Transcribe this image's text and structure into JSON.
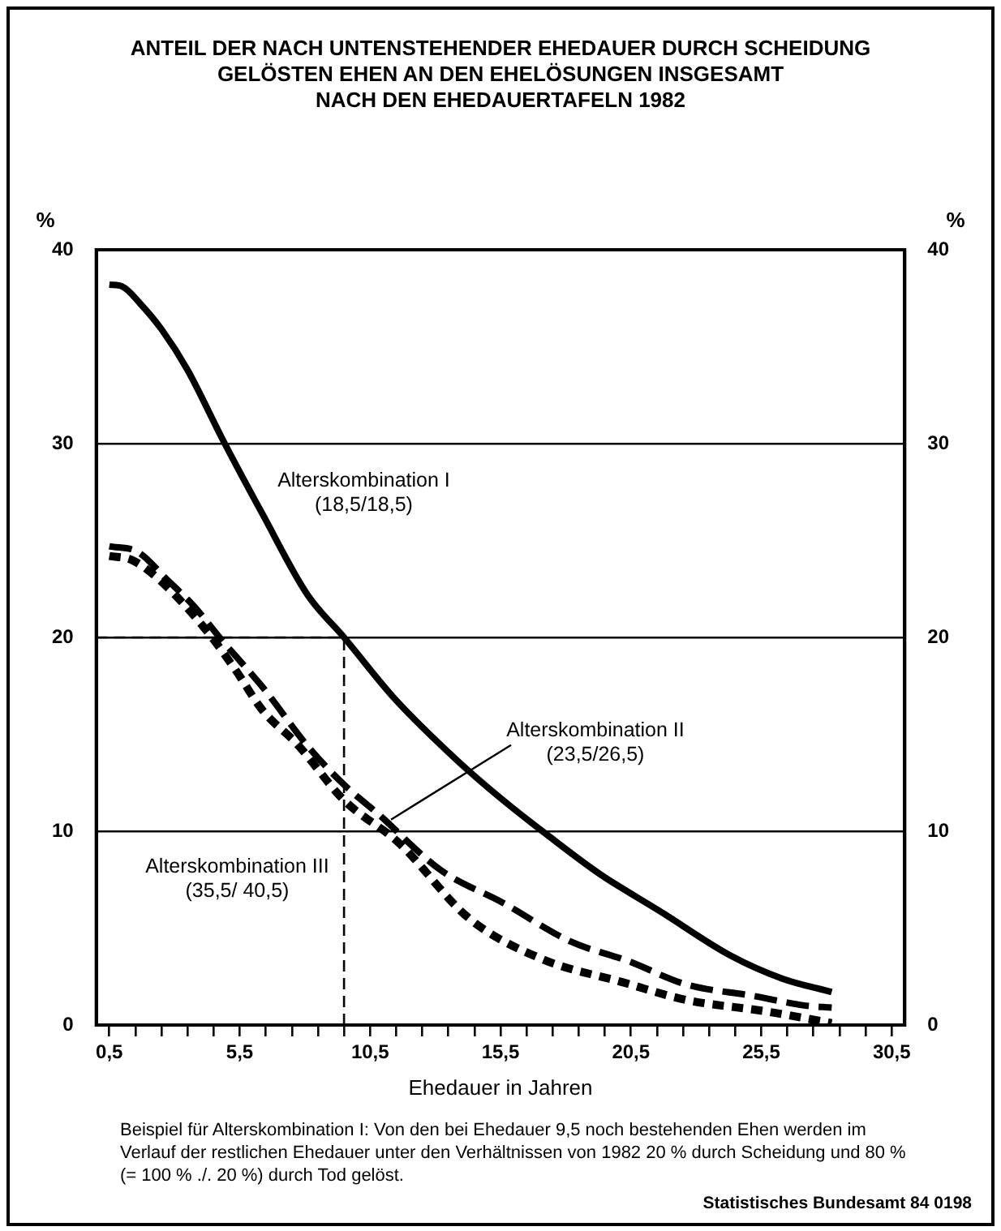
{
  "chart_data": {
    "type": "line",
    "title": "ANTEIL DER NACH UNTENSTEHENDER EHEDAUER DURCH SCHEIDUNG\nGELÖSTEN  EHEN AN DEN EHELÖSUNGEN INSGESAMT\nNACH DEN EHEDAUERTAFELN 1982",
    "xlabel": "Ehedauer in Jahren",
    "ylabel": "%",
    "y2label": "%",
    "series": [
      {
        "name": "Alterskombination I\n(18,5/18,5)",
        "color": "#000000",
        "line_style": "solid",
        "x": [
          0.5,
          1.0,
          1.7,
          2.5,
          3.5,
          4.85,
          6.4,
          8.1,
          9.5,
          11.4,
          13.8,
          15.6,
          17.3,
          19.3,
          21.7,
          24.3,
          26.3,
          28.2
        ],
        "values": [
          38.2,
          38.1,
          37.2,
          35.9,
          33.8,
          30.2,
          26.3,
          22.2,
          20,
          16.9,
          13.7,
          11.6,
          9.8,
          7.8,
          5.8,
          3.6,
          2.4,
          1.7
        ]
      },
      {
        "color": "#000000",
        "line_style": "dashed",
        "x": [
          0.5,
          1.6,
          2.7,
          3.75,
          4.85,
          6.4,
          8.1,
          9.5,
          10.8,
          13.2,
          15.6,
          18.2,
          20.4,
          22.6,
          25.2,
          27.2,
          28.2
        ],
        "values": [
          24.7,
          24.4,
          23.0,
          21.6,
          19.8,
          17.4,
          14.4,
          12.4,
          10.9,
          8.0,
          6.3,
          4.3,
          3.3,
          2.1,
          1.5,
          1.0,
          0.9
        ]
      },
      {
        "name": "Alterskombination III\n(35,5/ 40,5)",
        "color": "#000000",
        "line_style": "dotted",
        "x": [
          0.5,
          1.35,
          2.4,
          4.2,
          5.3,
          6.4,
          7.7,
          9.5,
          11.6,
          14.3,
          17.1,
          20.2,
          22.6,
          25.7,
          28.2
        ],
        "values": [
          24.2,
          24.0,
          23.0,
          20.4,
          18.4,
          16.2,
          14.5,
          11.6,
          9.4,
          5.5,
          3.4,
          2.2,
          1.3,
          0.7,
          0.1
        ]
      }
    ],
    "annotations": [
      {
        "text": "Alterskombination II\n(23,5/26,5)",
        "x": 11.3,
        "y": 10.6
      },
      "Beispiel für Alterskombination I: Von den bei Ehedauer 9,5 noch bestehenden Ehen werden im Verlauf der restlichen Ehedauer unter den Verhältnissen von 1982 20 % durch Scheidung und 80 % (= 100 % ./. 20 %) durch Tod gelöst.",
      "Statistisches Bundesamt 84 0198"
    ],
    "ref_lines": [
      {
        "axis": "y",
        "value": 20,
        "line_style": "dashed"
      },
      {
        "axis": "x",
        "value": 9.5,
        "line_style": "dashed"
      }
    ],
    "xlim": [
      0,
      31
    ],
    "xticks": [
      {
        "value": 0.5,
        "label": "0,5"
      },
      {
        "value": 1.5,
        "label": null
      },
      {
        "value": 2.5,
        "label": null
      },
      {
        "value": 3.5,
        "label": null
      },
      {
        "value": 4.5,
        "label": null
      },
      {
        "value": 5.5,
        "label": "5,5"
      },
      {
        "value": 6.5,
        "label": null
      },
      {
        "value": 7.5,
        "label": null
      },
      {
        "value": 8.5,
        "label": null
      },
      {
        "value": 9.5,
        "label": null
      },
      {
        "value": 10.5,
        "label": "10,5"
      },
      {
        "value": 11.5,
        "label": null
      },
      {
        "value": 12.5,
        "label": null
      },
      {
        "value": 13.5,
        "label": null
      },
      {
        "value": 14.5,
        "label": null
      },
      {
        "value": 15.5,
        "label": "15,5"
      },
      {
        "value": 16.5,
        "label": null
      },
      {
        "value": 17.5,
        "label": null
      },
      {
        "value": 18.5,
        "label": null
      },
      {
        "value": 19.5,
        "label": null
      },
      {
        "value": 20.5,
        "label": "20,5"
      },
      {
        "value": 21.5,
        "label": null
      },
      {
        "value": 22.5,
        "label": null
      },
      {
        "value": 23.5,
        "label": null
      },
      {
        "value": 24.5,
        "label": null
      },
      {
        "value": 25.5,
        "label": "25,5"
      },
      {
        "value": 26.5,
        "label": null
      },
      {
        "value": 27.5,
        "label": null
      },
      {
        "value": 28.5,
        "label": null
      },
      {
        "value": 29.5,
        "label": null
      },
      {
        "value": 30.5,
        "label": "30,5"
      }
    ],
    "ylim": [
      0,
      40
    ],
    "yticks": [
      0,
      10,
      20,
      30,
      40
    ],
    "y2lim": [
      0,
      40
    ],
    "y2ticks": [
      0,
      10,
      20,
      30,
      40
    ],
    "grid": "y",
    "legend": false,
    "marker": "none"
  }
}
